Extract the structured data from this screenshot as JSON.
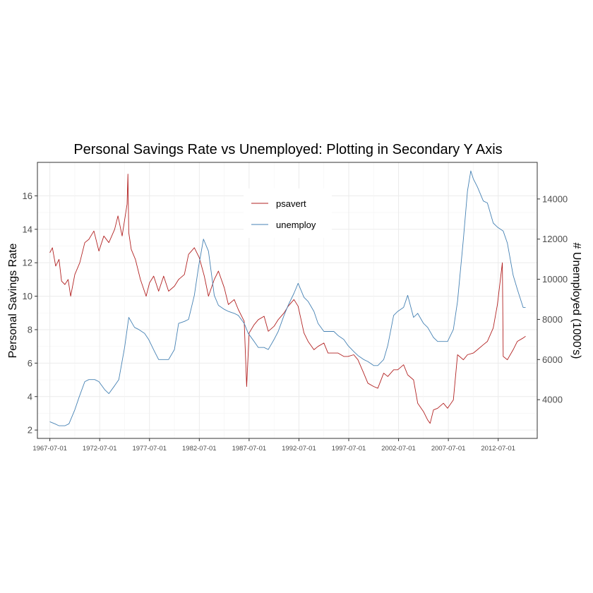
{
  "chart_data": {
    "type": "line",
    "title": "Personal Savings Rate vs Unemployed: Plotting in Secondary Y Axis",
    "ylabel": "Personal Savings Rate",
    "y2label": "# Unemployed (1000's)",
    "ylim": [
      1.5,
      18.0
    ],
    "y2lim": [
      2071,
      15824
    ],
    "yticks": [
      "2",
      "4",
      "6",
      "8",
      "10",
      "12",
      "14",
      "16"
    ],
    "y2ticks": [
      "4000",
      "6000",
      "8000",
      "10000",
      "12000",
      "14000"
    ],
    "xticks": [
      "1967-07-01",
      "1972-07-01",
      "1977-07-01",
      "1982-07-01",
      "1987-07-01",
      "1992-07-01",
      "1997-07-01",
      "2002-07-01",
      "2007-07-01",
      "2012-07-01"
    ],
    "xlim": [
      "1966-04-01",
      "2016-06-01"
    ],
    "grid": true,
    "legend_position": "top-center",
    "series": [
      {
        "name": "psavert",
        "axis": "left",
        "color": "#b22222",
        "x": [
          "1967-07-01",
          "1967-10-01",
          "1968-02-01",
          "1968-06-01",
          "1968-09-01",
          "1969-01-01",
          "1969-05-01",
          "1969-08-01",
          "1970-01-01",
          "1970-07-01",
          "1971-01-01",
          "1971-06-01",
          "1971-12-01",
          "1972-06-01",
          "1972-12-01",
          "1973-06-01",
          "1974-01-01",
          "1974-05-01",
          "1974-10-01",
          "1975-04-01",
          "1975-05-01",
          "1975-06-01",
          "1975-09-01",
          "1976-02-01",
          "1976-08-01",
          "1977-03-01",
          "1977-07-01",
          "1977-12-01",
          "1978-06-01",
          "1978-12-01",
          "1979-06-01",
          "1980-01-01",
          "1980-06-01",
          "1981-01-01",
          "1981-06-01",
          "1982-01-01",
          "1982-07-01",
          "1983-01-01",
          "1983-06-01",
          "1984-01-01",
          "1984-06-01",
          "1985-01-01",
          "1985-06-01",
          "1986-01-01",
          "1986-06-01",
          "1987-01-01",
          "1987-04-01",
          "1987-07-01",
          "1988-01-01",
          "1988-06-01",
          "1989-01-01",
          "1989-06-01",
          "1990-01-01",
          "1990-06-01",
          "1991-01-01",
          "1991-06-01",
          "1992-01-01",
          "1992-06-01",
          "1993-01-01",
          "1993-06-01",
          "1994-01-01",
          "1994-06-01",
          "1995-01-01",
          "1995-06-01",
          "1996-01-01",
          "1996-06-01",
          "1997-01-01",
          "1997-06-01",
          "1998-01-01",
          "1998-06-01",
          "1999-01-01",
          "1999-06-01",
          "2000-01-01",
          "2000-06-01",
          "2001-01-01",
          "2001-06-01",
          "2002-01-01",
          "2002-06-01",
          "2003-01-01",
          "2003-06-01",
          "2004-01-01",
          "2004-06-01",
          "2005-01-01",
          "2005-06-01",
          "2005-09-01",
          "2006-01-01",
          "2006-06-01",
          "2007-01-01",
          "2007-06-01",
          "2008-01-01",
          "2008-06-01",
          "2009-01-01",
          "2009-06-01",
          "2010-01-01",
          "2010-06-01",
          "2011-01-01",
          "2011-06-01",
          "2012-01-01",
          "2012-06-01",
          "2012-12-01",
          "2013-01-01",
          "2013-06-01",
          "2014-01-01",
          "2014-06-01",
          "2015-01-01",
          "2015-04-01"
        ],
        "y": [
          12.6,
          12.9,
          11.8,
          12.2,
          10.9,
          10.7,
          11.0,
          10.0,
          11.3,
          12.0,
          13.2,
          13.4,
          13.9,
          12.7,
          13.6,
          13.2,
          14.0,
          14.8,
          13.6,
          15.5,
          17.3,
          13.8,
          12.8,
          12.2,
          11.0,
          10.0,
          10.8,
          11.2,
          10.3,
          11.2,
          10.3,
          10.6,
          11.0,
          11.3,
          12.5,
          12.9,
          12.3,
          11.2,
          10.0,
          11.0,
          11.5,
          10.5,
          9.5,
          9.8,
          9.2,
          8.5,
          4.6,
          7.8,
          8.3,
          8.6,
          8.8,
          7.9,
          8.2,
          8.6,
          9.0,
          9.4,
          9.8,
          9.4,
          7.8,
          7.3,
          6.8,
          7.0,
          7.2,
          6.6,
          6.6,
          6.6,
          6.4,
          6.4,
          6.5,
          6.2,
          5.4,
          4.8,
          4.6,
          4.5,
          5.4,
          5.2,
          5.6,
          5.6,
          5.9,
          5.3,
          5.0,
          3.6,
          3.1,
          2.6,
          2.4,
          3.2,
          3.3,
          3.6,
          3.3,
          3.8,
          6.5,
          6.2,
          6.5,
          6.6,
          6.8,
          7.1,
          7.3,
          8.1,
          9.5,
          12.0,
          6.4,
          6.2,
          6.8,
          7.3,
          7.5,
          7.6
        ]
      },
      {
        "name": "unemploy",
        "axis": "right",
        "color": "#4682b4",
        "x": [
          "1967-07-01",
          "1968-01-01",
          "1968-06-01",
          "1969-01-01",
          "1969-06-01",
          "1970-01-01",
          "1970-06-01",
          "1971-01-01",
          "1971-06-01",
          "1972-01-01",
          "1972-06-01",
          "1973-01-01",
          "1973-06-01",
          "1974-01-01",
          "1974-06-01",
          "1975-01-01",
          "1975-06-01",
          "1976-01-01",
          "1976-06-01",
          "1977-01-01",
          "1977-06-01",
          "1978-01-01",
          "1978-06-01",
          "1979-01-01",
          "1979-06-01",
          "1980-01-01",
          "1980-06-01",
          "1981-01-01",
          "1981-06-01",
          "1982-01-01",
          "1982-06-01",
          "1982-12-01",
          "1983-06-01",
          "1984-01-01",
          "1984-06-01",
          "1985-01-01",
          "1985-06-01",
          "1986-01-01",
          "1986-06-01",
          "1987-01-01",
          "1987-06-01",
          "1988-01-01",
          "1988-06-01",
          "1989-01-01",
          "1989-06-01",
          "1990-01-01",
          "1990-06-01",
          "1991-01-01",
          "1991-06-01",
          "1992-01-01",
          "1992-06-01",
          "1993-01-01",
          "1993-06-01",
          "1994-01-01",
          "1994-06-01",
          "1995-01-01",
          "1995-06-01",
          "1996-01-01",
          "1996-06-01",
          "1997-01-01",
          "1997-06-01",
          "1998-01-01",
          "1998-06-01",
          "1999-01-01",
          "1999-06-01",
          "2000-01-01",
          "2000-06-01",
          "2001-01-01",
          "2001-06-01",
          "2002-01-01",
          "2002-06-01",
          "2003-01-01",
          "2003-06-01",
          "2004-01-01",
          "2004-06-01",
          "2005-01-01",
          "2005-06-01",
          "2006-01-01",
          "2006-06-01",
          "2007-01-01",
          "2007-06-01",
          "2008-01-01",
          "2008-06-01",
          "2009-01-01",
          "2009-06-01",
          "2009-10-01",
          "2010-01-01",
          "2010-06-01",
          "2011-01-01",
          "2011-06-01",
          "2012-01-01",
          "2012-06-01",
          "2013-01-01",
          "2013-06-01",
          "2014-01-01",
          "2014-06-01",
          "2015-01-01",
          "2015-04-01"
        ],
        "y": [
          2900,
          2800,
          2700,
          2700,
          2800,
          3500,
          4100,
          4900,
          5000,
          5000,
          4900,
          4500,
          4300,
          4700,
          5000,
          6600,
          8100,
          7600,
          7500,
          7300,
          7000,
          6400,
          6000,
          6000,
          6000,
          6500,
          7800,
          7900,
          8000,
          9200,
          10600,
          12000,
          11400,
          9200,
          8700,
          8500,
          8400,
          8300,
          8200,
          7800,
          7300,
          6900,
          6600,
          6600,
          6500,
          7000,
          7400,
          8200,
          8700,
          9300,
          9800,
          9100,
          8900,
          8400,
          7800,
          7400,
          7400,
          7400,
          7200,
          7000,
          6700,
          6400,
          6200,
          6000,
          5900,
          5700,
          5700,
          6000,
          6700,
          8200,
          8400,
          8600,
          9200,
          8100,
          8300,
          7800,
          7600,
          7100,
          6900,
          6900,
          6900,
          7500,
          8900,
          12000,
          14400,
          15400,
          15000,
          14600,
          13900,
          13800,
          12800,
          12600,
          12400,
          11800,
          10200,
          9500,
          8600,
          8600
        ]
      }
    ]
  }
}
